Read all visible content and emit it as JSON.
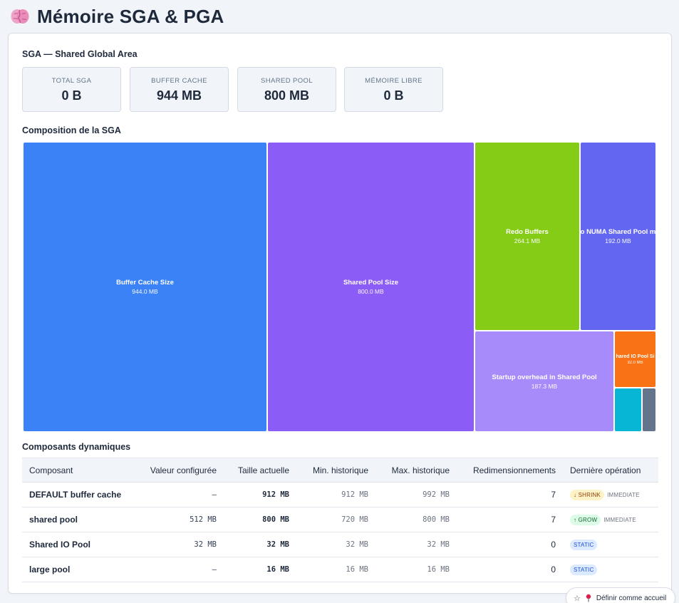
{
  "page": {
    "title": "Mémoire SGA & PGA",
    "icon": "brain-icon"
  },
  "sga": {
    "section_title": "SGA — Shared Global Area",
    "stats": [
      {
        "label": "TOTAL SGA",
        "value": "0 B"
      },
      {
        "label": "BUFFER CACHE",
        "value": "944 MB"
      },
      {
        "label": "SHARED POOL",
        "value": "800 MB"
      },
      {
        "label": "MÉMOIRE LIBRE",
        "value": "0 B"
      }
    ]
  },
  "composition": {
    "section_title": "Composition de la SGA",
    "cells": [
      {
        "name": "Buffer Cache Size",
        "value": "944.0 MB",
        "color": "#3b82f6"
      },
      {
        "name": "Shared Pool Size",
        "value": "800.0 MB",
        "color": "#8b5cf6"
      },
      {
        "name": "Redo Buffers",
        "value": "264.1 MB",
        "color": "#84cc16"
      },
      {
        "name": "o NUMA Shared Pool m",
        "value": "192.0 MB",
        "color": "#6366f1"
      },
      {
        "name": "Startup overhead in Shared Pool",
        "value": "187.3 MB",
        "color": "#a78bfa"
      },
      {
        "name": "hared IO Pool Si",
        "value": "32.0 MB",
        "color": "#f97316"
      },
      {
        "name": "",
        "value": "",
        "color": "#06b6d4"
      },
      {
        "name": "",
        "value": "",
        "color": "#64748b"
      }
    ]
  },
  "dynamic": {
    "section_title": "Composants dynamiques",
    "headers": [
      "Composant",
      "Valeur configurée",
      "Taille actuelle",
      "Min. historique",
      "Max. historique",
      "Redimensionnements",
      "Dernière opération"
    ],
    "rows": [
      {
        "component": "DEFAULT buffer cache",
        "configured": "–",
        "current": "912 MB",
        "min": "912 MB",
        "max": "992 MB",
        "resizes": "7",
        "op": "↓ SHRINK",
        "mode": "IMMEDIATE"
      },
      {
        "component": "shared pool",
        "configured": "512 MB",
        "current": "800 MB",
        "min": "720 MB",
        "max": "800 MB",
        "resizes": "7",
        "op": "↑ GROW",
        "mode": "IMMEDIATE"
      },
      {
        "component": "Shared IO Pool",
        "configured": "32 MB",
        "current": "32 MB",
        "min": "32 MB",
        "max": "32 MB",
        "resizes": "0",
        "op": "STATIC",
        "mode": ""
      },
      {
        "component": "large pool",
        "configured": "–",
        "current": "16 MB",
        "min": "16 MB",
        "max": "16 MB",
        "resizes": "0",
        "op": "STATIC",
        "mode": ""
      }
    ],
    "badge_colors": {
      "shrink": {
        "bg": "#fef3c7",
        "fg": "#92400e"
      },
      "grow": {
        "bg": "#dcfce7",
        "fg": "#166534"
      },
      "static": {
        "bg": "#dbeafe",
        "fg": "#1d4ed8"
      }
    }
  },
  "footer": {
    "home_button_label": "Définir comme accueil"
  }
}
